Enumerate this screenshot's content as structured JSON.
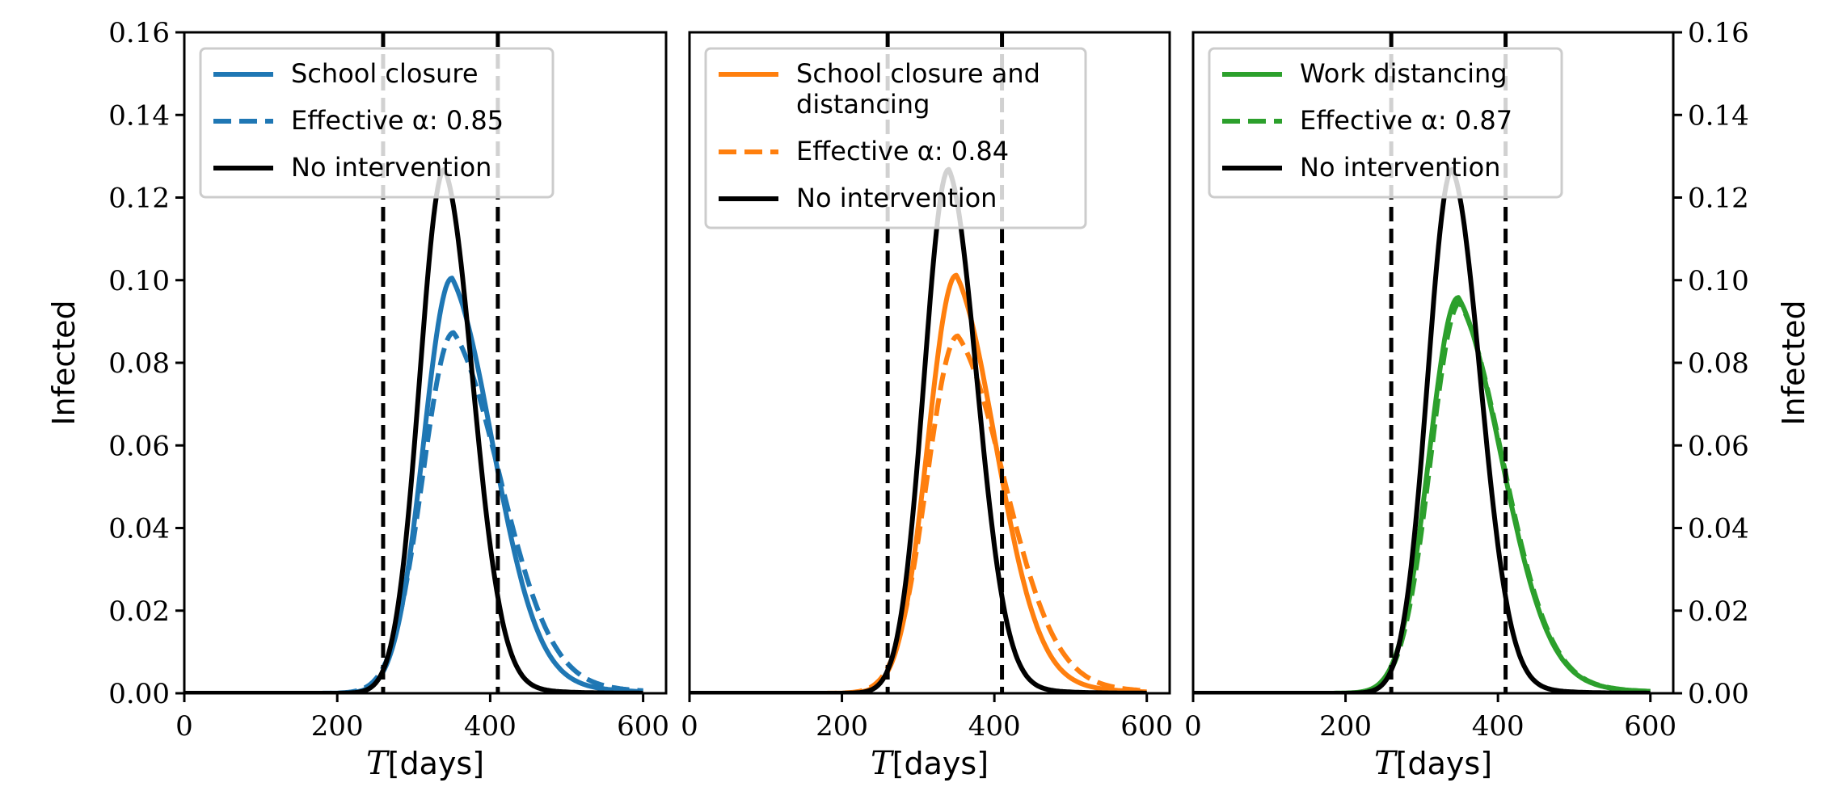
{
  "chart_data": [
    {
      "type": "line",
      "panel": "left",
      "xlabel_var": "T",
      "xlabel_unit": "[days]",
      "ylabel": "Infected",
      "xlim": [
        0,
        630
      ],
      "ylim": [
        0,
        0.16
      ],
      "xticks": [
        "0",
        "200",
        "400",
        "600"
      ],
      "yticks": [
        "0.00",
        "0.02",
        "0.04",
        "0.06",
        "0.08",
        "0.10",
        "0.12",
        "0.14",
        "0.16"
      ],
      "vlines": [
        260,
        410
      ],
      "legend": {
        "position": "upper-left",
        "entries": [
          {
            "series": 0,
            "lines": [
              "School closure"
            ]
          },
          {
            "series": 1,
            "lines": [
              "Effective α: 0.85"
            ]
          },
          {
            "series": 2,
            "lines": [
              "No intervention"
            ]
          }
        ]
      },
      "series": [
        {
          "name": "School closure",
          "color": "#1f77b4",
          "dash": "solid",
          "peak_x": 350,
          "peak_y": 0.1005,
          "sigma_left": 37,
          "sigma_right": 57,
          "tail": 0.6
        },
        {
          "name": "Effective α: 0.85",
          "color": "#1f77b4",
          "dash": "dashed",
          "peak_x": 352,
          "peak_y": 0.0873,
          "sigma_left": 40,
          "sigma_right": 65,
          "tail": 0.6
        },
        {
          "name": "No intervention",
          "color": "#000000",
          "dash": "solid",
          "peak_x": 340,
          "peak_y": 0.1268,
          "sigma_left": 32,
          "sigma_right": 38,
          "tail": 0.3
        }
      ]
    },
    {
      "type": "line",
      "panel": "middle",
      "xlabel_var": "T",
      "xlabel_unit": "[days]",
      "ylabel": "",
      "xlim": [
        0,
        630
      ],
      "ylim": [
        0,
        0.16
      ],
      "xticks": [
        "0",
        "200",
        "400",
        "600"
      ],
      "yticks": [],
      "vlines": [
        260,
        410
      ],
      "legend": {
        "position": "upper-left",
        "entries": [
          {
            "series": 0,
            "lines": [
              "School closure and",
              "distancing"
            ]
          },
          {
            "series": 1,
            "lines": [
              "Effective α: 0.84"
            ]
          },
          {
            "series": 2,
            "lines": [
              "No intervention"
            ]
          }
        ]
      },
      "series": [
        {
          "name": "School closure and distancing",
          "color": "#ff7f0e",
          "dash": "solid",
          "peak_x": 350,
          "peak_y": 0.1012,
          "sigma_left": 37,
          "sigma_right": 55,
          "tail": 0.6
        },
        {
          "name": "Effective α: 0.84",
          "color": "#ff7f0e",
          "dash": "dashed",
          "peak_x": 352,
          "peak_y": 0.0865,
          "sigma_left": 40,
          "sigma_right": 65,
          "tail": 0.6
        },
        {
          "name": "No intervention",
          "color": "#000000",
          "dash": "solid",
          "peak_x": 340,
          "peak_y": 0.1268,
          "sigma_left": 32,
          "sigma_right": 38,
          "tail": 0.3
        }
      ]
    },
    {
      "type": "line",
      "panel": "right",
      "xlabel_var": "T",
      "xlabel_unit": "[days]",
      "ylabel": "Infected",
      "xlim": [
        0,
        630
      ],
      "ylim": [
        0,
        0.16
      ],
      "xticks": [
        "0",
        "200",
        "400",
        "600"
      ],
      "yticks": [
        "0.00",
        "0.02",
        "0.04",
        "0.06",
        "0.08",
        "0.10",
        "0.12",
        "0.14",
        "0.16"
      ],
      "vlines": [
        260,
        410
      ],
      "legend": {
        "position": "upper-left",
        "entries": [
          {
            "series": 0,
            "lines": [
              "Work distancing"
            ]
          },
          {
            "series": 1,
            "lines": [
              "Effective α: 0.87"
            ]
          },
          {
            "series": 2,
            "lines": [
              "No intervention"
            ]
          }
        ]
      },
      "series": [
        {
          "name": "Work distancing",
          "color": "#2ca02c",
          "dash": "solid",
          "peak_x": 348,
          "peak_y": 0.0958,
          "sigma_left": 38,
          "sigma_right": 60,
          "tail": 0.6
        },
        {
          "name": "Effective α: 0.87",
          "color": "#2ca02c",
          "dash": "dashed",
          "peak_x": 350,
          "peak_y": 0.0945,
          "sigma_left": 38,
          "sigma_right": 60,
          "tail": 0.6
        },
        {
          "name": "No intervention",
          "color": "#000000",
          "dash": "solid",
          "peak_x": 340,
          "peak_y": 0.1268,
          "sigma_left": 32,
          "sigma_right": 38,
          "tail": 0.3
        }
      ]
    }
  ]
}
